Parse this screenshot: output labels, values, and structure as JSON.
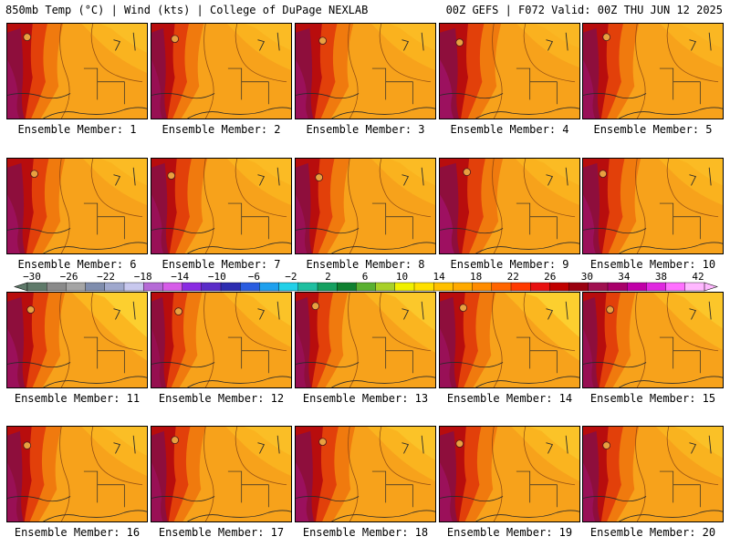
{
  "header": {
    "left": "850mb Temp (°C) | Wind (kts) | College of DuPage NEXLAB",
    "right": "00Z GEFS | F072 Valid: 00Z THU JUN 12 2025"
  },
  "caption_prefix": "Ensemble Member:",
  "members": [
    {
      "label": "Ensemble Member: 1",
      "west_heat": 0.55,
      "east_cool": 0.25
    },
    {
      "label": "Ensemble Member: 2",
      "west_heat": 0.45,
      "east_cool": 0.2
    },
    {
      "label": "Ensemble Member: 3",
      "west_heat": 0.6,
      "east_cool": 0.2
    },
    {
      "label": "Ensemble Member: 4",
      "west_heat": 0.7,
      "east_cool": 0.15
    },
    {
      "label": "Ensemble Member: 5",
      "west_heat": 0.55,
      "east_cool": 0.15
    },
    {
      "label": "Ensemble Member: 6",
      "west_heat": 0.6,
      "east_cool": 0.2
    },
    {
      "label": "Ensemble Member: 7",
      "west_heat": 0.55,
      "east_cool": 0.2
    },
    {
      "label": "Ensemble Member: 8",
      "west_heat": 0.5,
      "east_cool": 0.2
    },
    {
      "label": "Ensemble Member: 9",
      "west_heat": 0.75,
      "east_cool": 0.2
    },
    {
      "label": "Ensemble Member: 10",
      "west_heat": 0.6,
      "east_cool": 0.2
    },
    {
      "label": "Ensemble Member: 11",
      "west_heat": 0.6,
      "east_cool": 0.6
    },
    {
      "label": "Ensemble Member: 12",
      "west_heat": 0.4,
      "east_cool": 0.35
    },
    {
      "label": "Ensemble Member: 13",
      "west_heat": 0.45,
      "east_cool": 0.45
    },
    {
      "label": "Ensemble Member: 14",
      "west_heat": 0.55,
      "east_cool": 0.6
    },
    {
      "label": "Ensemble Member: 15",
      "west_heat": 0.45,
      "east_cool": 0.4
    },
    {
      "label": "Ensemble Member: 16",
      "west_heat": 0.5,
      "east_cool": 0.25
    },
    {
      "label": "Ensemble Member: 17",
      "west_heat": 0.5,
      "east_cool": 0.25
    },
    {
      "label": "Ensemble Member: 18",
      "west_heat": 0.65,
      "east_cool": 0.35
    },
    {
      "label": "Ensemble Member: 19",
      "west_heat": 0.6,
      "east_cool": 0.35
    },
    {
      "label": "Ensemble Member: 20",
      "west_heat": 0.55,
      "east_cool": 0.3
    }
  ],
  "colorbar": {
    "labels": [
      "−30",
      "−26",
      "−22",
      "−18",
      "−14",
      "−10",
      "−6",
      "−2",
      "2",
      "6",
      "10",
      "14",
      "18",
      "22",
      "26",
      "30",
      "34",
      "38",
      "42"
    ],
    "colors": [
      "#5f7a6a",
      "#8a8a8a",
      "#a5a5a5",
      "#7f8dad",
      "#9fa8cd",
      "#c8c8ee",
      "#b56ad6",
      "#d65ce8",
      "#8a2be2",
      "#5a2cc8",
      "#2c2cb0",
      "#2a5de0",
      "#1fa0ee",
      "#22d0e8",
      "#1fbfa0",
      "#15a060",
      "#0f8030",
      "#59b030",
      "#a8d028",
      "#f0f000",
      "#ffe000",
      "#ffc000",
      "#ffaa00",
      "#ff8c00",
      "#ff6400",
      "#ff3a00",
      "#e81010",
      "#c00000",
      "#9a0010",
      "#a01050",
      "#a8006a",
      "#c000a8",
      "#e028e0",
      "#ff70ff",
      "#ffb8ff"
    ]
  }
}
